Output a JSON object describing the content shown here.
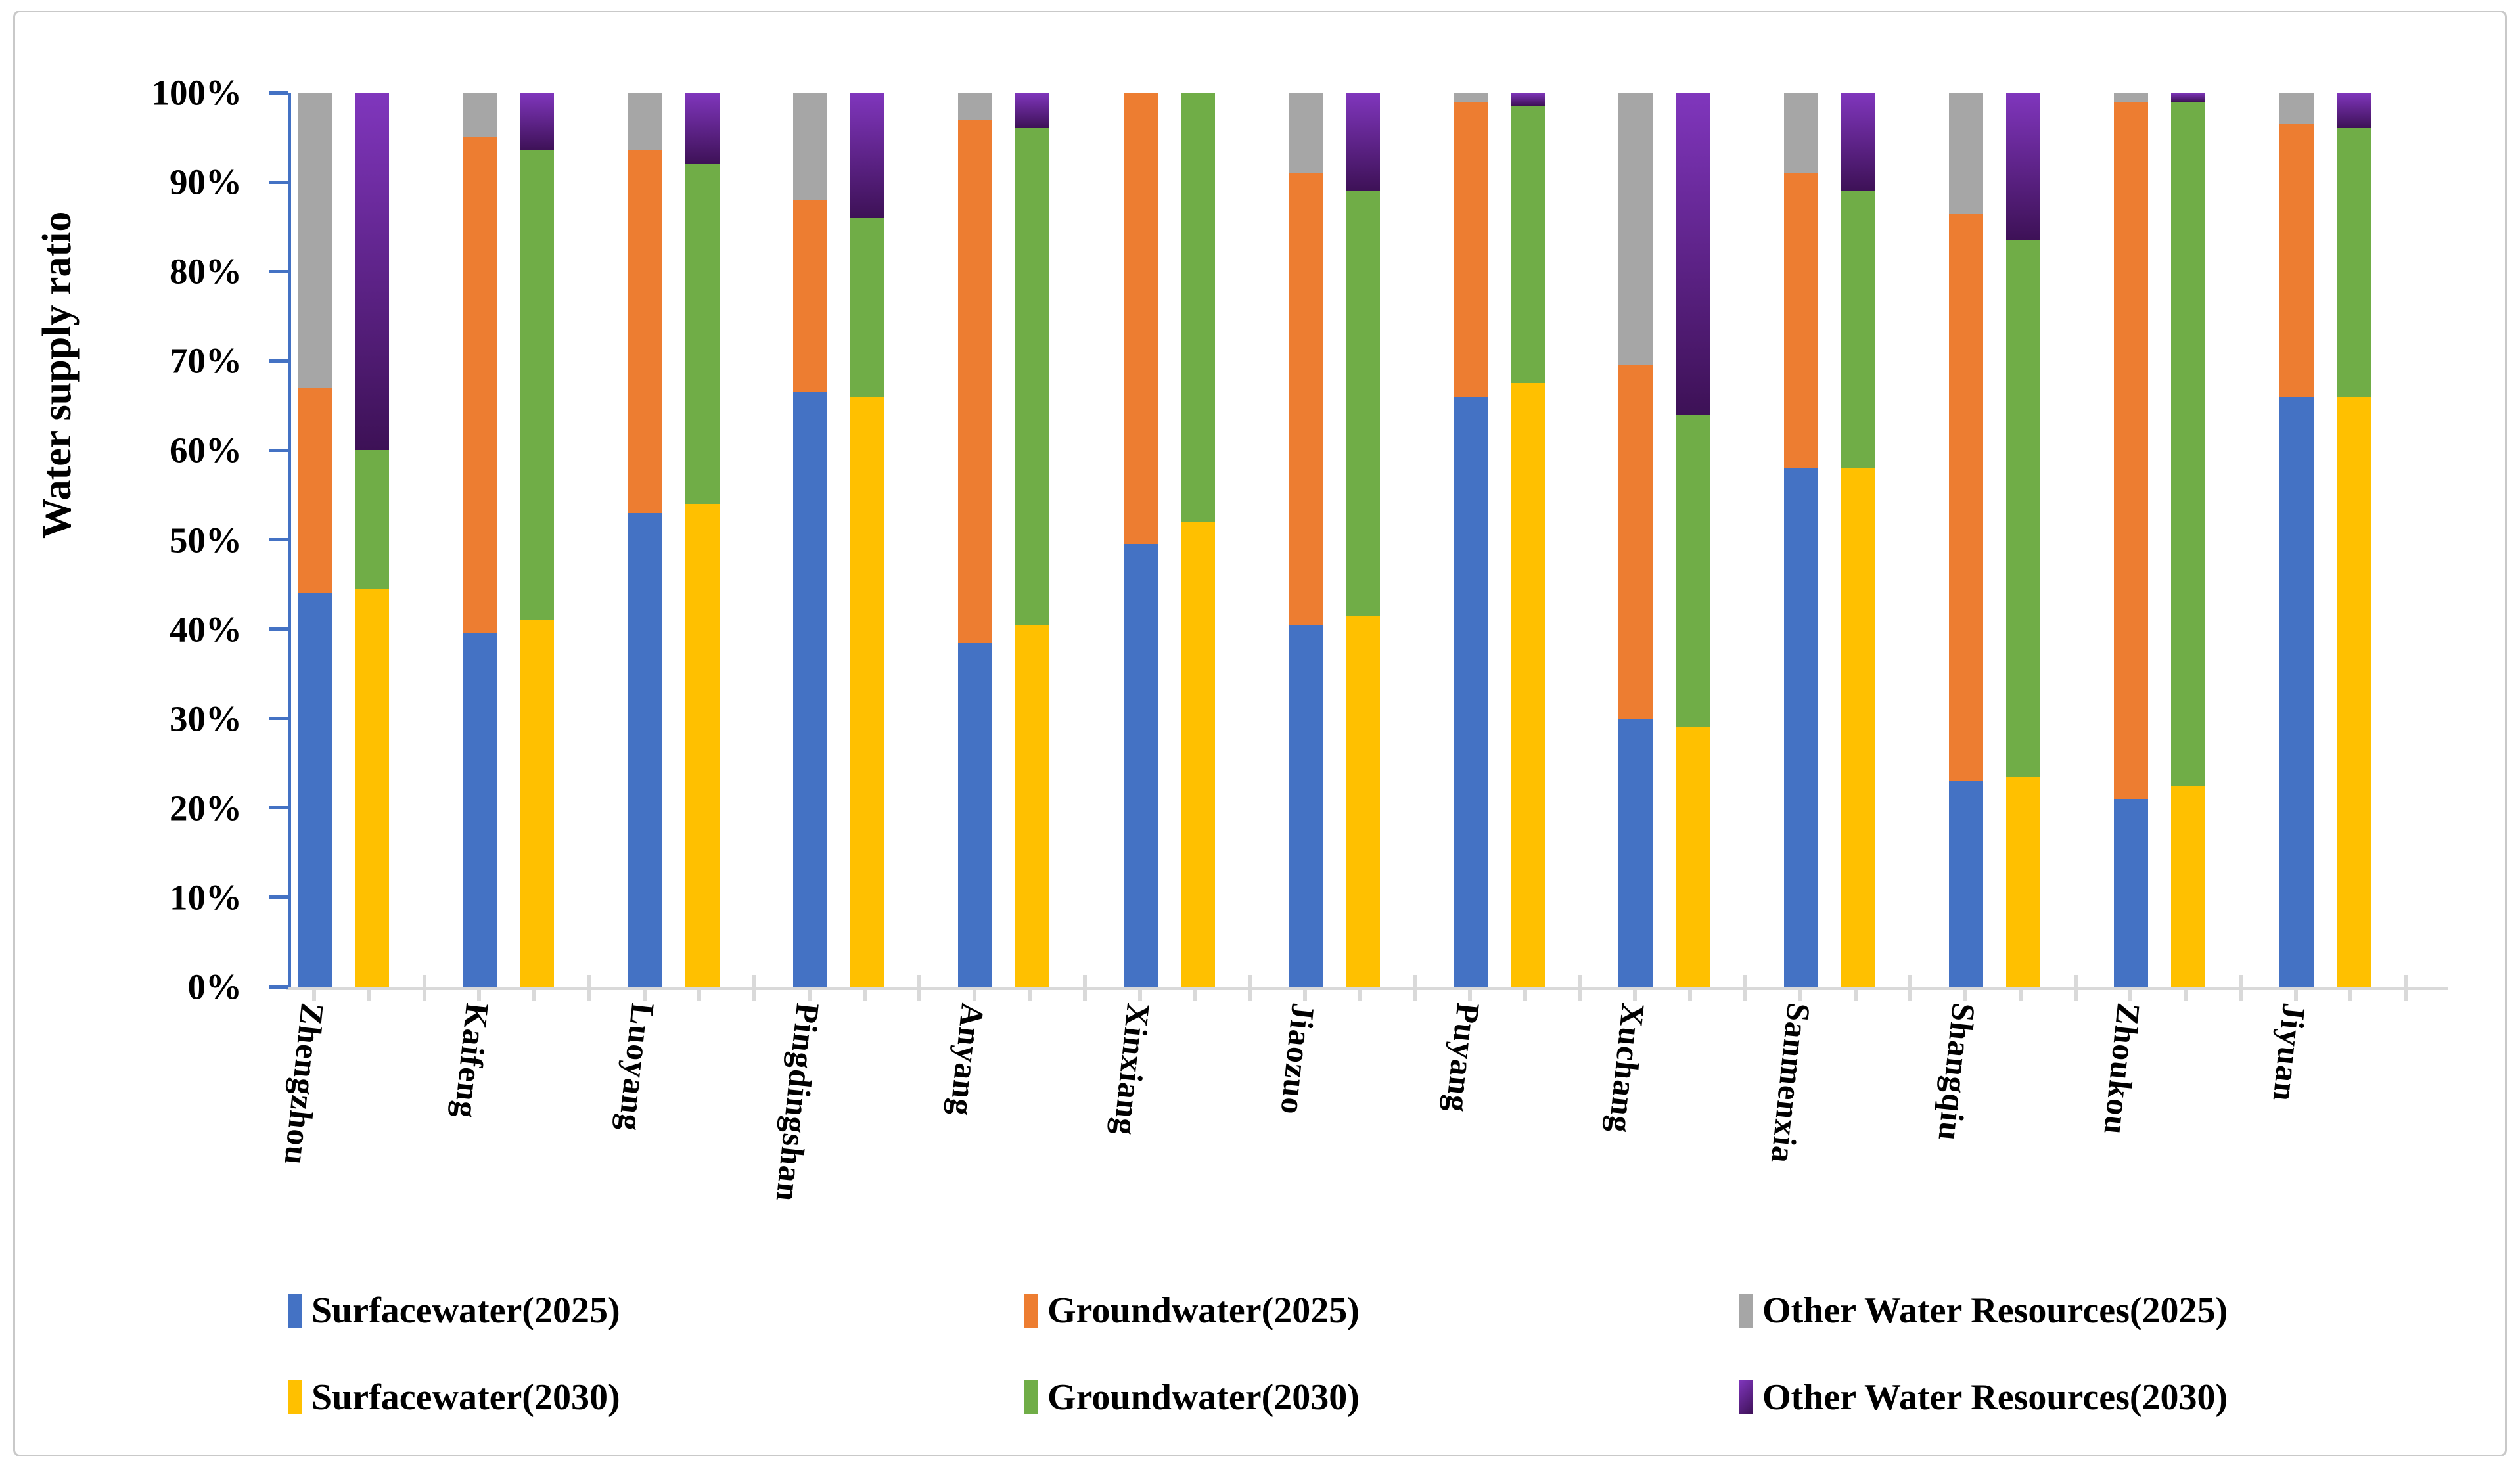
{
  "figure": {
    "y_axis_title": "Water supply ratio",
    "y_tick_labels": [
      "0%",
      "10%",
      "20%",
      "30%",
      "40%",
      "50%",
      "60%",
      "70%",
      "80%",
      "90%",
      "100%"
    ]
  },
  "colors": {
    "surfacewater_2025": "#4472c4",
    "groundwater_2025": "#ed7d31",
    "other_2025": "#a6a6a6",
    "surfacewater_2030": "#ffc000",
    "groundwater_2030": "#70ad47",
    "other_2030_gradient_top": "#8036bd",
    "other_2030_gradient_bottom": "#3d1156",
    "y_axis": "#4472c4",
    "x_axis": "#d9d9d9",
    "frame": "#c9c9c9"
  },
  "legend": {
    "rows": [
      [
        {
          "label": "Surfacewater(2025)",
          "color": "#4472c4"
        },
        {
          "label": "Groundwater(2025)",
          "color": "#ed7d31"
        },
        {
          "label": "Other Water Resources(2025)",
          "color": "#a6a6a6"
        }
      ],
      [
        {
          "label": "Surfacewater(2030)",
          "color": "#ffc000"
        },
        {
          "label": "Groundwater(2030)",
          "color": "#70ad47"
        },
        {
          "label": "Other Water Resources(2030)",
          "gradient": [
            "#8036bd",
            "#3d1156"
          ]
        }
      ]
    ]
  },
  "chart_data": {
    "type": "bar",
    "stacked": true,
    "unit": "%",
    "title": "",
    "xlabel": "",
    "ylabel": "Water supply ratio",
    "ylim": [
      0,
      100
    ],
    "y_ticks": [
      0,
      10,
      20,
      30,
      40,
      50,
      60,
      70,
      80,
      90,
      100
    ],
    "grid": false,
    "legend_position": "bottom",
    "categories": [
      "Zhengzhou",
      "Kaifeng",
      "Luoyang",
      "Pingdingshan",
      "Anyang",
      "Xinxiang",
      "Jiaozuo",
      "Puyang",
      "Xuchang",
      "Sanmenxia",
      "Shangqiu",
      "Zhoukou",
      "Jiyuan"
    ],
    "series": [
      {
        "name": "Surfacewater(2025)",
        "bar": 0,
        "color": "#4472c4",
        "values": [
          44,
          39.5,
          53,
          66.5,
          38.5,
          49.5,
          40.5,
          66,
          30,
          58,
          23,
          21,
          66
        ]
      },
      {
        "name": "Groundwater(2025)",
        "bar": 0,
        "color": "#ed7d31",
        "values": [
          23,
          55.5,
          40.5,
          21.5,
          58.5,
          50.5,
          50.5,
          33,
          39.5,
          33,
          63.5,
          78,
          30.5
        ]
      },
      {
        "name": "Other Water Resources(2025)",
        "bar": 0,
        "color": "#a6a6a6",
        "values": [
          33,
          5,
          6.5,
          12,
          3,
          0,
          9,
          1,
          30.5,
          9,
          13.5,
          1,
          3.5
        ]
      },
      {
        "name": "Surfacewater(2030)",
        "bar": 1,
        "color": "#ffc000",
        "values": [
          44.5,
          41,
          54,
          66,
          40.5,
          52,
          41.5,
          67.5,
          29,
          58,
          23.5,
          22.5,
          66
        ]
      },
      {
        "name": "Groundwater(2030)",
        "bar": 1,
        "color": "#70ad47",
        "values": [
          15.5,
          52.5,
          38,
          20,
          55.5,
          48,
          47.5,
          31,
          35,
          31,
          60,
          76.5,
          30
        ]
      },
      {
        "name": "Other Water Resources(2030)",
        "bar": 1,
        "gradient": [
          "#8036bd",
          "#3d1156"
        ],
        "values": [
          40,
          6.5,
          8,
          14,
          4,
          0,
          11,
          1.5,
          36,
          11,
          16.5,
          1,
          4
        ]
      }
    ]
  }
}
